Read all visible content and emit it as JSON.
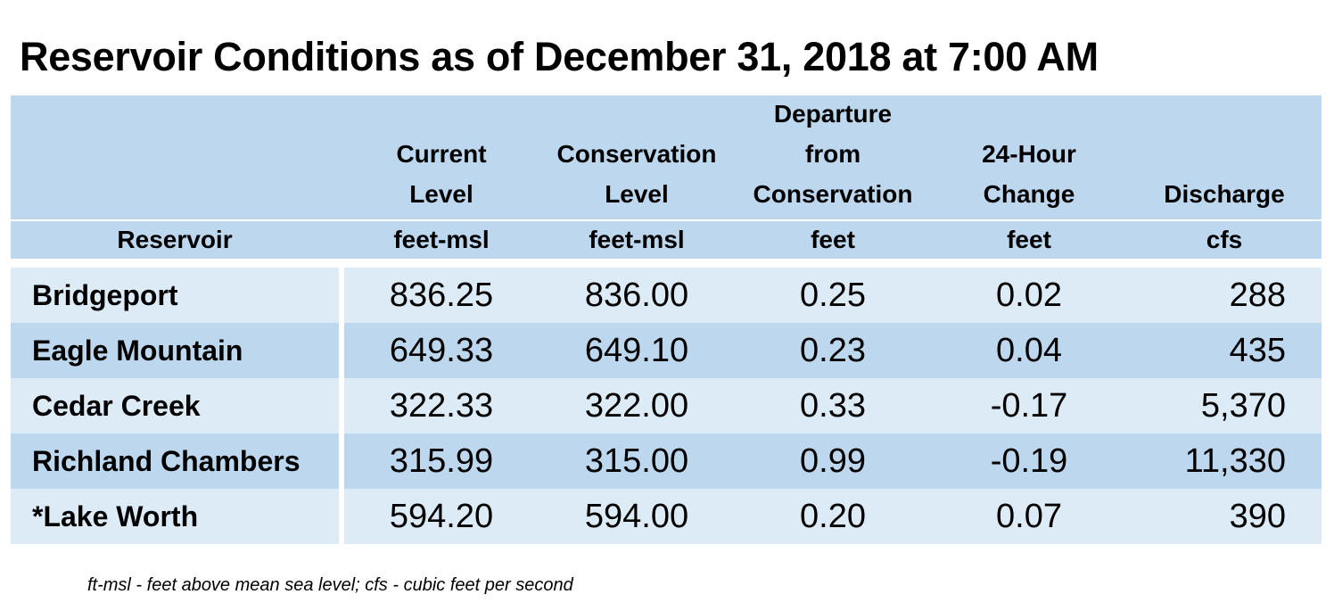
{
  "title": "Reservoir Conditions as of December 31, 2018 at 7:00 AM",
  "headers": {
    "line1": [
      "",
      "Current Level",
      "Conservation Level",
      "Departure from Conservation",
      "24-Hour Change",
      "Discharge"
    ],
    "units": [
      "Reservoir",
      "feet-msl",
      "feet-msl",
      "feet",
      "feet",
      "cfs"
    ]
  },
  "rows": [
    {
      "reservoir": "Bridgeport",
      "current": "836.25",
      "conservation": "836.00",
      "departure": "0.25",
      "change": "0.02",
      "discharge": "288"
    },
    {
      "reservoir": "Eagle Mountain",
      "current": "649.33",
      "conservation": "649.10",
      "departure": "0.23",
      "change": "0.04",
      "discharge": "435"
    },
    {
      "reservoir": "Cedar Creek",
      "current": "322.33",
      "conservation": "322.00",
      "departure": "0.33",
      "change": "-0.17",
      "discharge": "5,370"
    },
    {
      "reservoir": "Richland Chambers",
      "current": "315.99",
      "conservation": "315.00",
      "departure": "0.99",
      "change": "-0.19",
      "discharge": "11,330"
    },
    {
      "reservoir": "*Lake Worth",
      "current": "594.20",
      "conservation": "594.00",
      "departure": "0.20",
      "change": "0.07",
      "discharge": "390"
    }
  ],
  "footnote": "ft-msl - feet above mean sea level; cfs - cubic feet per second",
  "colors": {
    "header_bg": "#bdd7ee",
    "row_light": "#ddebf7",
    "row_dark": "#bdd7ee"
  }
}
